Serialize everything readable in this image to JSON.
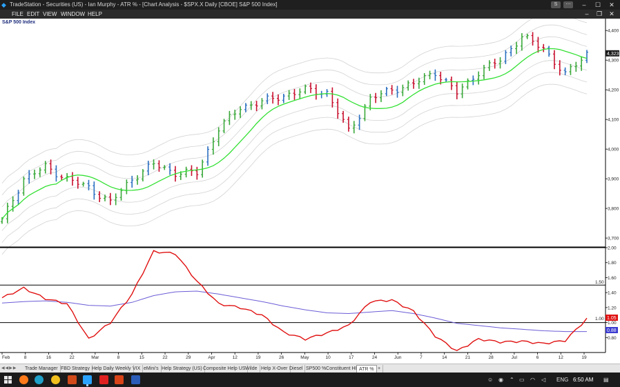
{
  "window": {
    "title": "TradeStation - Securities (US) - Ian Murphy - ATR % - [Chart Analysis - $SPX.X Daily [CBOE] S&P 500 Index]",
    "logo_icon": "tradestation-logo-icon"
  },
  "menu": {
    "items": [
      "FILE",
      "EDIT",
      "VIEW",
      "WINDOW",
      "HELP"
    ]
  },
  "chart": {
    "symbol_label": "S&P 500 Index",
    "last_price_label": "4,323",
    "last_price_value": 4323,
    "price_axis_ticks": [
      "4,400",
      "4,300",
      "4,200",
      "4,100",
      "4,000",
      "3,900",
      "3,800",
      "3,700"
    ],
    "price_axis_values": [
      4400,
      4300,
      4200,
      4100,
      4000,
      3900,
      3800,
      3700
    ],
    "atr_axis_ticks": [
      "2.00",
      "1.80",
      "1.60",
      "1.40",
      "1.20",
      "1.00",
      "0.80"
    ],
    "atr_axis_values": [
      2.0,
      1.8,
      1.6,
      1.4,
      1.2,
      1.0,
      0.8
    ],
    "atr_level_labels": [
      "1.50",
      "1.00"
    ],
    "atr_current_label": "1.05",
    "atr_avg_label": "0.88",
    "date_labels": [
      "Feb",
      "8",
      "16",
      "22",
      "Mar",
      "8",
      "15",
      "22",
      "29",
      "Apr",
      "12",
      "19",
      "26",
      "May",
      "10",
      "17",
      "24",
      "Jun",
      "7",
      "14",
      "21",
      "28",
      "Jul",
      "6",
      "12",
      "19"
    ],
    "colors": {
      "up_bar": "#3aa83a",
      "down_bar": "#c8102e",
      "neutral_bar": "#2b6fc0",
      "ma": "#33e033",
      "band": "#d2d2d2",
      "atr": "#e01010",
      "atr_avg": "#6a5cd6",
      "atr_marker": "#e01010",
      "atr_avg_marker": "#3b3bd0"
    }
  },
  "chart_data": {
    "type": "line",
    "title": "",
    "series": [
      {
        "name": "",
        "x": [
          0,
          4,
          8,
          12,
          16,
          20,
          24,
          28,
          32,
          36,
          40,
          44,
          48,
          52,
          56,
          60,
          64,
          68,
          72,
          76,
          80,
          84,
          88,
          92,
          96,
          100,
          104,
          108
        ],
        "values": [
          3760,
          3900,
          3940,
          3900,
          3870,
          3820,
          3900,
          3950,
          3920,
          3920,
          4070,
          4140,
          4160,
          4180,
          4200,
          4190,
          4060,
          4170,
          4200,
          4220,
          4260,
          4190,
          4260,
          4300,
          4380,
          4340,
          4250,
          4323
        ]
      },
      {
        "name": "",
        "x": [
          0,
          4,
          8,
          12,
          16,
          20,
          24,
          28,
          32,
          36,
          40,
          44,
          48,
          52,
          56,
          60,
          64,
          68,
          72,
          76,
          80,
          84,
          88,
          92,
          96,
          100,
          104,
          108
        ],
        "values": [
          1.33,
          1.46,
          1.32,
          1.25,
          0.78,
          1.0,
          1.38,
          1.95,
          1.92,
          1.55,
          1.25,
          1.2,
          1.1,
          0.87,
          0.78,
          0.86,
          0.96,
          1.28,
          1.3,
          1.15,
          0.82,
          0.62,
          0.78,
          0.74,
          0.75,
          0.72,
          0.76,
          1.05
        ]
      },
      {
        "name": "",
        "x": [
          0,
          4,
          8,
          12,
          16,
          20,
          24,
          28,
          32,
          36,
          40,
          44,
          48,
          52,
          56,
          60,
          64,
          68,
          72,
          76,
          80,
          84,
          88,
          92,
          96,
          100,
          104,
          108
        ],
        "values": [
          1.26,
          1.28,
          1.29,
          1.27,
          1.23,
          1.22,
          1.27,
          1.36,
          1.41,
          1.42,
          1.38,
          1.33,
          1.28,
          1.22,
          1.17,
          1.13,
          1.12,
          1.14,
          1.16,
          1.12,
          1.06,
          0.99,
          0.96,
          0.93,
          0.91,
          0.89,
          0.88,
          0.88
        ]
      }
    ],
    "ylim_price": [
      3670,
      4440
    ],
    "ylim_atr": [
      0.6,
      2.0
    ],
    "hlines_atr": [
      2.0,
      1.5,
      1.0
    ],
    "grid": false,
    "legend": "none"
  },
  "tabs": {
    "items": [
      "Trade Manager",
      "FBD Strategy",
      "Help Daily Weekly",
      "VIX",
      "eMini's",
      "Help Strategy (US)",
      "Composite Help US",
      "Wilde",
      "Help X-Over",
      "Diesel",
      "SP500 %Constituent HL",
      "ATR %",
      "+"
    ],
    "active": "ATR %"
  },
  "taskbar": {
    "language": "ENG",
    "time": "6:50 AM"
  }
}
